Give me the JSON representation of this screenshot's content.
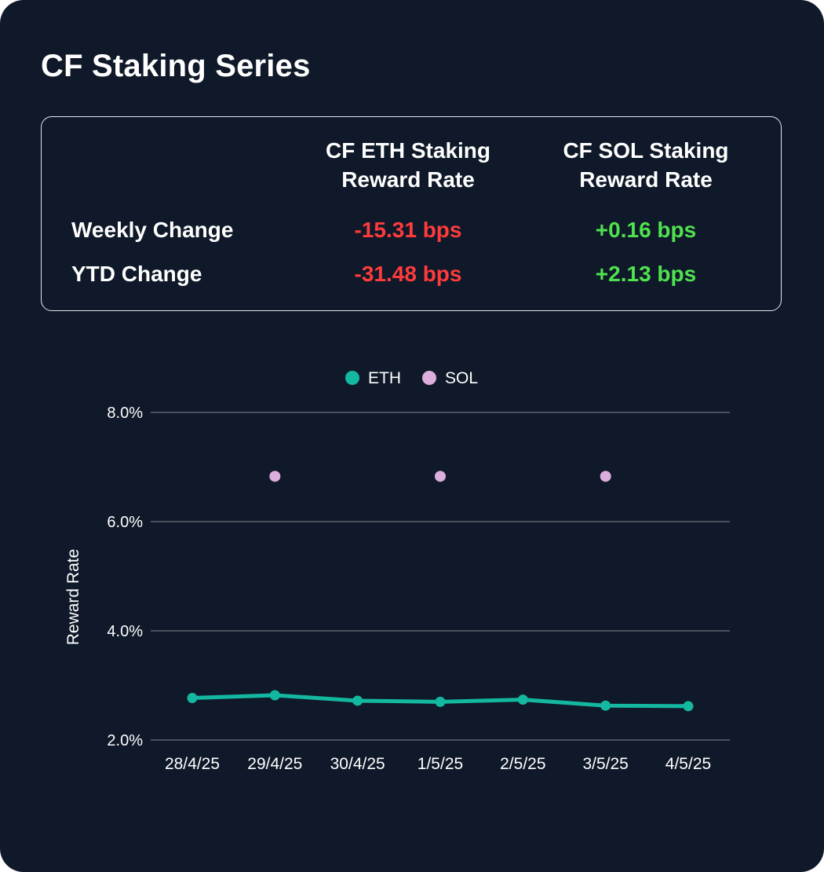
{
  "title": "CF Staking Series",
  "summary": {
    "columns": [
      "CF ETH Staking Reward Rate",
      "CF SOL Staking Reward Rate"
    ],
    "column_lines": [
      [
        "CF ETH Staking",
        "Reward Rate"
      ],
      [
        "CF SOL Staking",
        "Reward Rate"
      ]
    ],
    "rows": [
      {
        "label": "Weekly Change",
        "eth": "-15.31 bps",
        "sol": "+0.16 bps"
      },
      {
        "label": "YTD Change",
        "eth": "-31.48 bps",
        "sol": "+2.13 bps"
      }
    ],
    "colors": {
      "negative": "#ff3b3b",
      "positive": "#4fe24f"
    }
  },
  "chart_data": {
    "type": "line",
    "title": "",
    "xlabel": "",
    "ylabel": "Reward Rate",
    "categories": [
      "28/4/25",
      "29/4/25",
      "30/4/25",
      "1/5/25",
      "2/5/25",
      "3/5/25",
      "4/5/25"
    ],
    "ylim": [
      2.0,
      8.0
    ],
    "yticks": [
      2.0,
      4.0,
      6.0,
      8.0
    ],
    "ytick_labels": [
      "2.0%",
      "4.0%",
      "6.0%",
      "8.0%"
    ],
    "grid": true,
    "legend_position": "top-center",
    "series": [
      {
        "name": "ETH",
        "color": "#14b8a0",
        "style": "line-markers",
        "values": [
          2.77,
          2.82,
          2.72,
          2.7,
          2.74,
          2.63,
          2.62
        ]
      },
      {
        "name": "SOL",
        "color": "#dbaedc",
        "style": "markers",
        "values": [
          null,
          6.83,
          null,
          6.83,
          null,
          6.83,
          null
        ]
      }
    ]
  }
}
